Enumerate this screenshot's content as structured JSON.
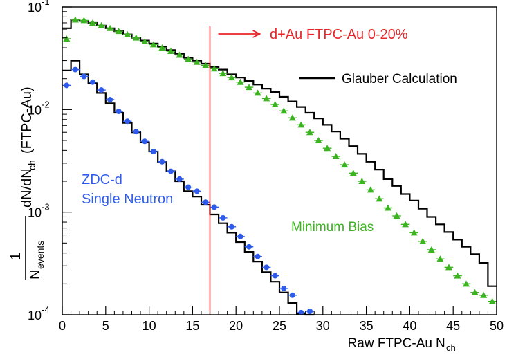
{
  "chart_data": {
    "type": "step-histogram-with-markers",
    "title": "",
    "xlabel": "Raw FTPC-Au",
    "xlabel_sub": "ch",
    "ylabel_fraction_num": "1",
    "ylabel_fraction_den": "N",
    "ylabel_fraction_den_sub": "events",
    "ylabel_rest": "dN/dN",
    "ylabel_rest_sub": "ch",
    "ylabel_tail": "(FTPC-Au)",
    "xlim": [
      0,
      50
    ],
    "ylim": [
      0.0001,
      0.1
    ],
    "yscale": "log",
    "x_ticks": [
      "0",
      "5",
      "10",
      "15",
      "20",
      "25",
      "30",
      "35",
      "40",
      "45",
      "50"
    ],
    "y_ticks": [
      {
        "value": 0.1,
        "base": "10",
        "exp": "-1"
      },
      {
        "value": 0.01,
        "base": "10",
        "exp": "-2"
      },
      {
        "value": 0.001,
        "base": "10",
        "exp": "-3"
      },
      {
        "value": 0.0001,
        "base": "10",
        "exp": "-4"
      }
    ],
    "cut_line": {
      "x": 17,
      "label": "d+Au FTPC-Au 0-20%",
      "color": "#e8262a"
    },
    "series": [
      {
        "name": "Glauber Calculation (minimum bias)",
        "kind": "step",
        "color": "#000000",
        "x0": 0,
        "bin_width": 1,
        "values": [
          0.062,
          0.075,
          0.073,
          0.07,
          0.066,
          0.062,
          0.058,
          0.054,
          0.05,
          0.047,
          0.044,
          0.041,
          0.038,
          0.035,
          0.032,
          0.03,
          0.028,
          0.026,
          0.0245,
          0.022,
          0.0205,
          0.019,
          0.0175,
          0.016,
          0.0148,
          0.0133,
          0.012,
          0.0106,
          0.0093,
          0.0082,
          0.0071,
          0.0061,
          0.0052,
          0.0044,
          0.0037,
          0.0031,
          0.0026,
          0.0021,
          0.0018,
          0.0015,
          0.0013,
          0.00108,
          0.0009,
          0.00076,
          0.00064,
          0.00054,
          0.00046,
          0.00039,
          0.00032,
          0.00019
        ]
      },
      {
        "name": "Glauber Calculation (single neutron)",
        "kind": "step",
        "color": "#000000",
        "x0": 0,
        "bin_width": 1,
        "values": [
          0.024,
          0.03,
          0.022,
          0.018,
          0.0145,
          0.0115,
          0.0093,
          0.0074,
          0.006,
          0.0048,
          0.0039,
          0.0031,
          0.0025,
          0.002,
          0.0016,
          0.00142,
          0.00118,
          0.00095,
          0.00078,
          0.00063,
          0.00051,
          0.00041,
          0.00033,
          0.00026,
          0.00021,
          0.000165,
          0.00013,
          0.000102,
          8e-05
        ]
      },
      {
        "name": "Minimum Bias",
        "kind": "markers",
        "marker": "triangle",
        "color": "#3cb321",
        "x": [
          0.5,
          1.5,
          2.5,
          3.5,
          4.5,
          5.5,
          6.5,
          7.5,
          8.5,
          9.5,
          10.5,
          11.5,
          12.5,
          13.5,
          14.5,
          15.5,
          16.5,
          17.5,
          18.5,
          19.5,
          20.5,
          21.5,
          22.5,
          23.5,
          24.5,
          25.5,
          26.5,
          27.5,
          28.5,
          29.5,
          30.5,
          31.5,
          32.5,
          33.5,
          34.5,
          35.5,
          36.5,
          37.5,
          38.5,
          39.5,
          40.5,
          41.5,
          42.5,
          43.5,
          44.5,
          45.5,
          46.5,
          47.5,
          48.5,
          49.5
        ],
        "values": [
          0.049,
          0.075,
          0.074,
          0.07,
          0.066,
          0.062,
          0.058,
          0.054,
          0.05,
          0.046,
          0.043,
          0.04,
          0.037,
          0.034,
          0.031,
          0.029,
          0.027,
          0.025,
          0.0225,
          0.0205,
          0.0185,
          0.0165,
          0.0145,
          0.0128,
          0.0112,
          0.0097,
          0.0083,
          0.0071,
          0.006,
          0.005,
          0.0042,
          0.0035,
          0.0029,
          0.0024,
          0.002,
          0.00165,
          0.00135,
          0.0011,
          0.00092,
          0.00076,
          0.00063,
          0.00052,
          0.00043,
          0.00035,
          0.00029,
          0.00024,
          0.0002,
          0.000165,
          0.000155,
          0.000135
        ]
      },
      {
        "name": "ZDC-d Single Neutron",
        "kind": "markers",
        "marker": "circle",
        "color": "#2f5bea",
        "x": [
          0.5,
          1.5,
          2.5,
          3.5,
          4.5,
          5.5,
          6.5,
          7.5,
          8.5,
          9.5,
          10.5,
          11.5,
          12.5,
          13.5,
          14.5,
          15.5,
          16.5,
          17.5,
          18.5,
          19.5,
          20.5,
          21.5,
          22.5,
          23.5,
          24.5,
          25.5,
          26.5,
          27.5,
          28.5
        ],
        "values": [
          0.0172,
          0.0245,
          0.021,
          0.0185,
          0.0155,
          0.0125,
          0.0096,
          0.0077,
          0.0061,
          0.0049,
          0.0039,
          0.0031,
          0.0025,
          0.0021,
          0.00175,
          0.0016,
          0.00125,
          0.00112,
          0.00088,
          0.00072,
          0.00058,
          0.00046,
          0.00037,
          0.00029,
          0.00024,
          0.00018,
          0.000155,
          0.000105,
          0.000108
        ]
      }
    ],
    "annotations": [
      {
        "text": "Glauber Calculation",
        "role": "legend",
        "color": "#000000"
      },
      {
        "text": "ZDC-d",
        "role": "series-label",
        "color": "#2f5bea"
      },
      {
        "text": "Single Neutron",
        "role": "series-label",
        "color": "#2f5bea"
      },
      {
        "text": "Minimum Bias",
        "role": "series-label",
        "color": "#3cb321"
      }
    ]
  }
}
